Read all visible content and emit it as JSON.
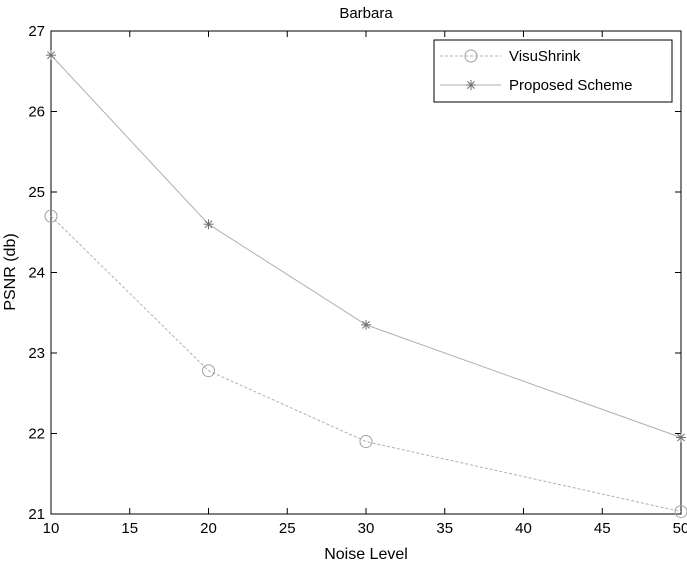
{
  "chart_data": {
    "type": "line",
    "title": "Barbara",
    "xlabel": "Noise Level",
    "ylabel": "PSNR (db)",
    "xlim": [
      10,
      50
    ],
    "ylim": [
      21,
      27
    ],
    "xticks": [
      10,
      15,
      20,
      25,
      30,
      35,
      40,
      45,
      50
    ],
    "yticks": [
      21,
      22,
      23,
      24,
      25,
      26,
      27
    ],
    "x": [
      10,
      20,
      30,
      50
    ],
    "grid": false,
    "legend_position": "top-right",
    "series": [
      {
        "name": "VisuShrink",
        "values": [
          24.7,
          22.78,
          21.9,
          21.03
        ],
        "marker": "circle",
        "line": "dashed",
        "color": "#b0b0b0"
      },
      {
        "name": "Proposed Scheme",
        "values": [
          26.7,
          24.6,
          23.35,
          21.95
        ],
        "marker": "star",
        "line": "solid",
        "color": "#b0b0b0"
      }
    ]
  }
}
